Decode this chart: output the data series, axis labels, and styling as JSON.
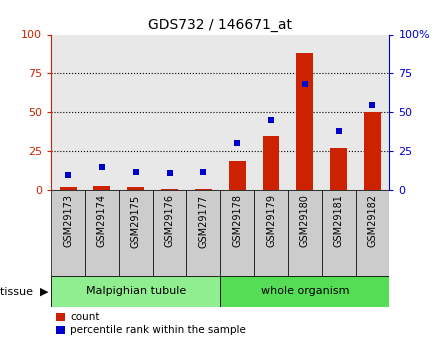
{
  "title": "GDS732 / 146671_at",
  "categories": [
    "GSM29173",
    "GSM29174",
    "GSM29175",
    "GSM29176",
    "GSM29177",
    "GSM29178",
    "GSM29179",
    "GSM29180",
    "GSM29181",
    "GSM29182"
  ],
  "count_values": [
    2,
    3,
    2,
    1,
    1,
    19,
    35,
    88,
    27,
    50
  ],
  "percentile_values": [
    10,
    15,
    12,
    11,
    12,
    30,
    45,
    68,
    38,
    55
  ],
  "tissue_groups": [
    {
      "label": "Malpighian tubule",
      "start": 0,
      "end": 5,
      "color": "#90ee90"
    },
    {
      "label": "whole organism",
      "start": 5,
      "end": 10,
      "color": "#55dd55"
    }
  ],
  "bar_color": "#cc2200",
  "dot_color": "#0000cc",
  "ylim": [
    0,
    100
  ],
  "yticks": [
    0,
    25,
    50,
    75,
    100
  ],
  "plot_bg": "#e8e8e8",
  "cell_bg": "#cccccc",
  "legend_items": [
    "count",
    "percentile rank within the sample"
  ],
  "legend_colors": [
    "#cc2200",
    "#0000cc"
  ]
}
